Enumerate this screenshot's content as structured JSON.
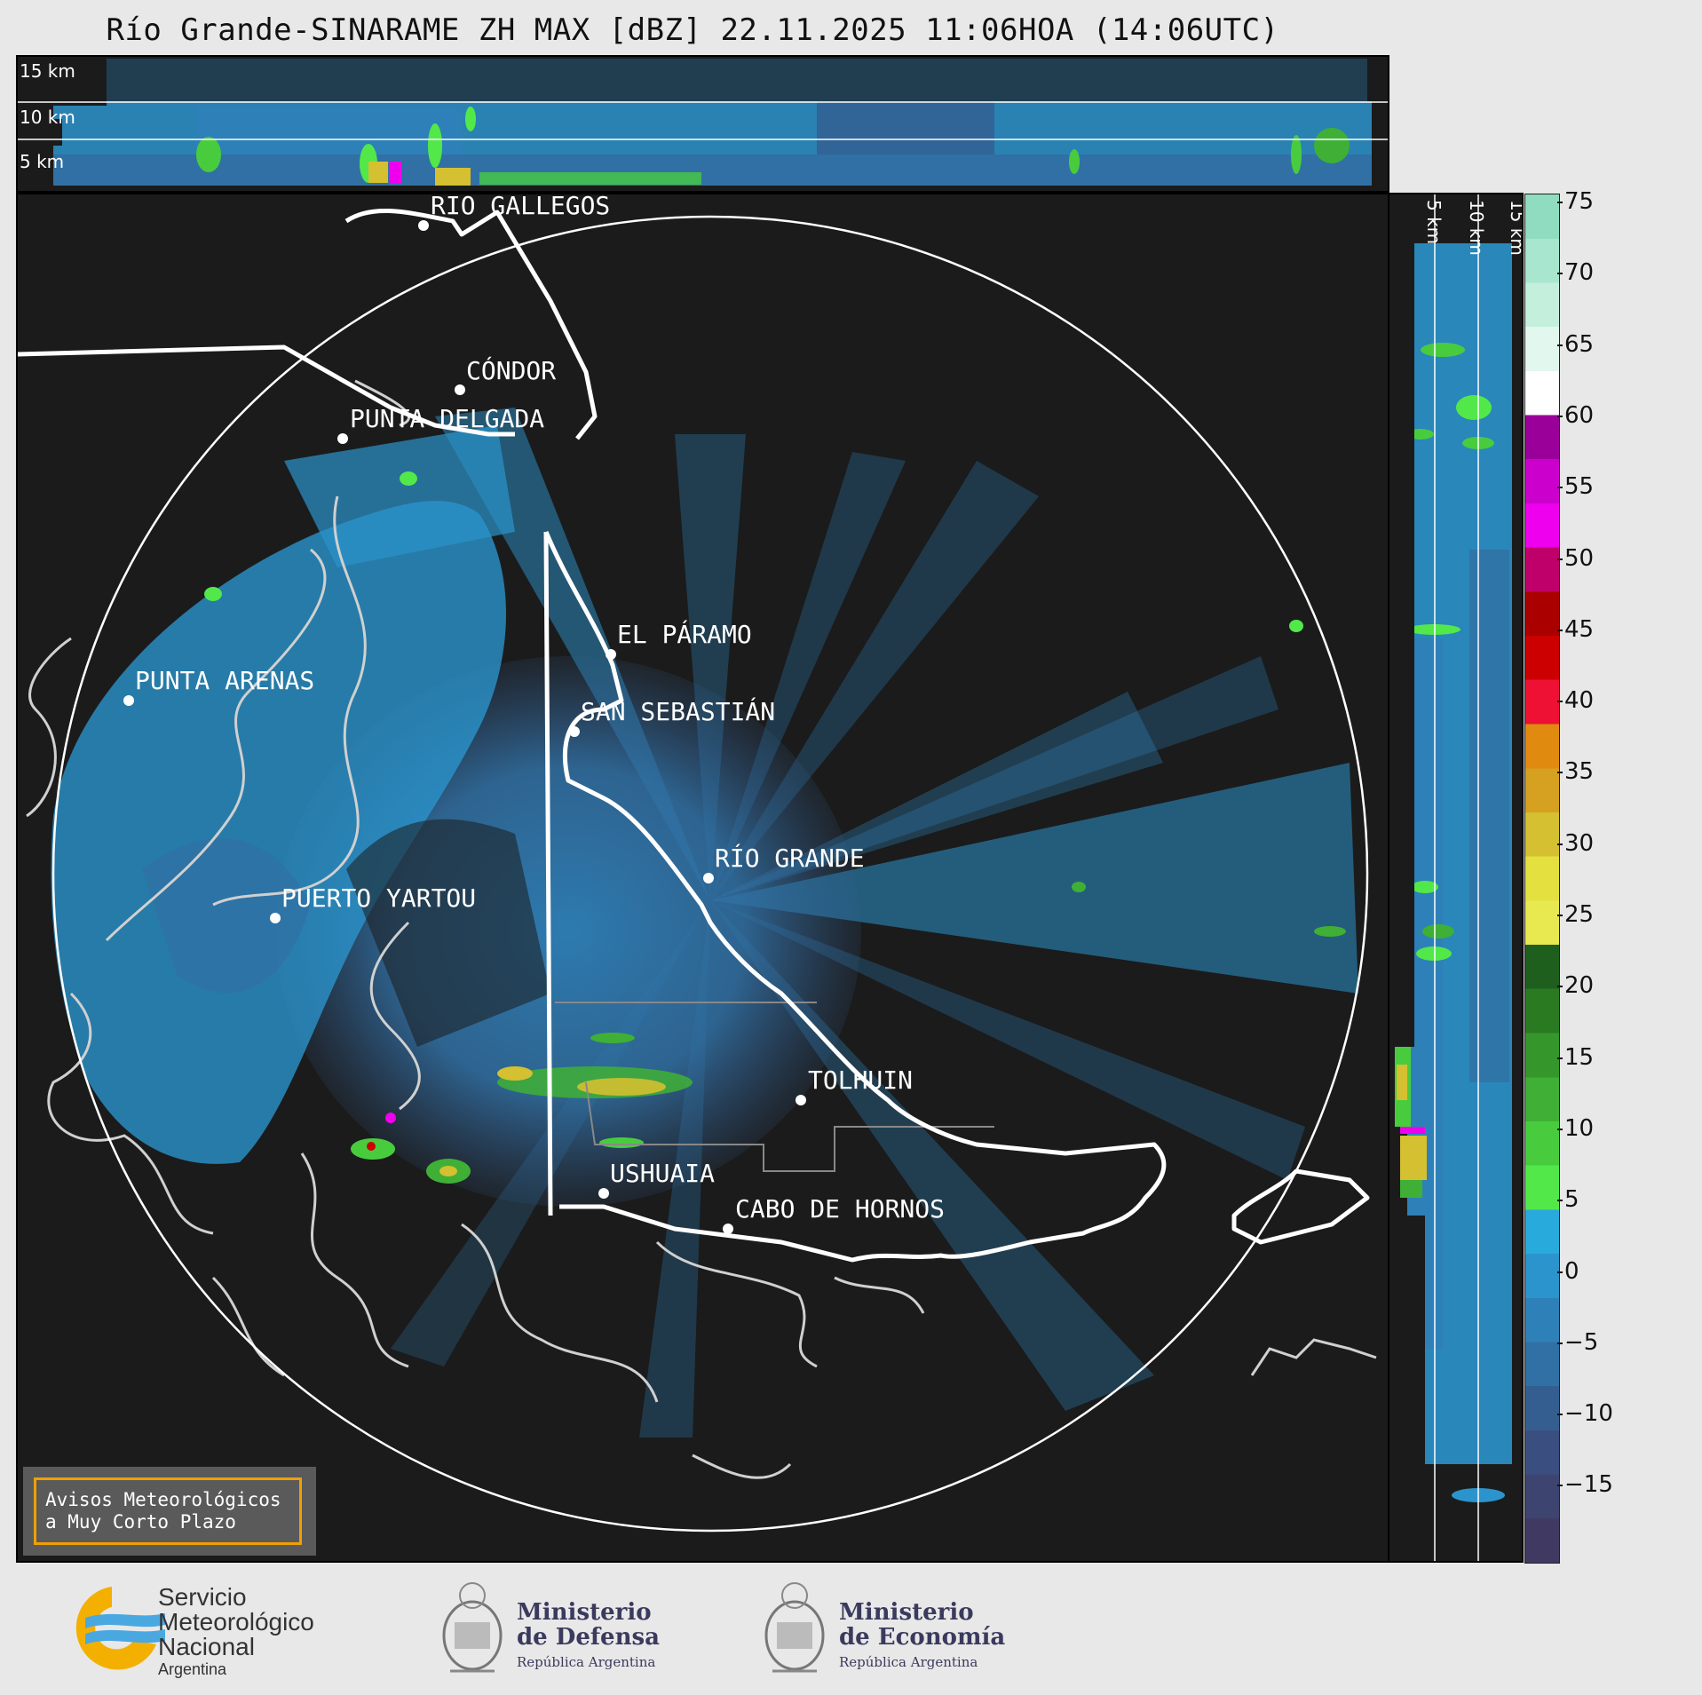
{
  "title": "Río Grande-SINARAME ZH MAX [dBZ] 22.11.2025 11:06HOA (14:06UTC)",
  "top_panel": {
    "height_labels": [
      "15 km",
      "10 km",
      "5 km"
    ]
  },
  "side_panel": {
    "height_labels": [
      "5 km",
      "10 km",
      "15 km"
    ]
  },
  "colorbar": {
    "ticks": [
      "75",
      "70",
      "65",
      "60",
      "55",
      "50",
      "45",
      "40",
      "35",
      "30",
      "25",
      "20",
      "15",
      "10",
      "5",
      "0",
      "−5",
      "−10",
      "−15"
    ],
    "colors": [
      "#8fdcc0",
      "#a8e6cf",
      "#c5efdd",
      "#e2f7ee",
      "#ffffff",
      "#9a0099",
      "#cc00cc",
      "#ee00ee",
      "#c0006a",
      "#aa0000",
      "#cc0000",
      "#ee1133",
      "#e08a10",
      "#d6a020",
      "#d4c030",
      "#e4e040",
      "#e8e850",
      "#1e5f1e",
      "#2a7a22",
      "#35962c",
      "#3fb035",
      "#48cc3e",
      "#52e84a",
      "#28aadd",
      "#2b94cc",
      "#2e80b8",
      "#3170a4",
      "#345e90",
      "#3a4f80",
      "#3d4470",
      "#403a62"
    ]
  },
  "map": {
    "cities": [
      {
        "name": "RÍO GALLEGOS"
      },
      {
        "name": "CÓNDOR"
      },
      {
        "name": "PUNTA DELGADA"
      },
      {
        "name": "EL PÁRAMO"
      },
      {
        "name": "PUNTA ARENAS"
      },
      {
        "name": "SAN SEBASTIÁN"
      },
      {
        "name": "RÍO GRANDE"
      },
      {
        "name": "PUERTO YARTOU"
      },
      {
        "name": "TOLHUIN"
      },
      {
        "name": "USHUAIA"
      },
      {
        "name": "CABO DE HORNOS"
      }
    ]
  },
  "avisos": {
    "line1": "Avisos Meteorológicos",
    "line2": "a Muy Corto Plazo"
  },
  "logos": {
    "smn": {
      "line1": "Servicio",
      "line2": "Meteorológico",
      "line3": "Nacional",
      "line4": "Argentina"
    },
    "defensa": {
      "line1": "Ministerio",
      "line2": "de Defensa",
      "line3": "República Argentina"
    },
    "economia": {
      "line1": "Ministerio",
      "line2": "de Economía",
      "line3": "República Argentina"
    }
  }
}
